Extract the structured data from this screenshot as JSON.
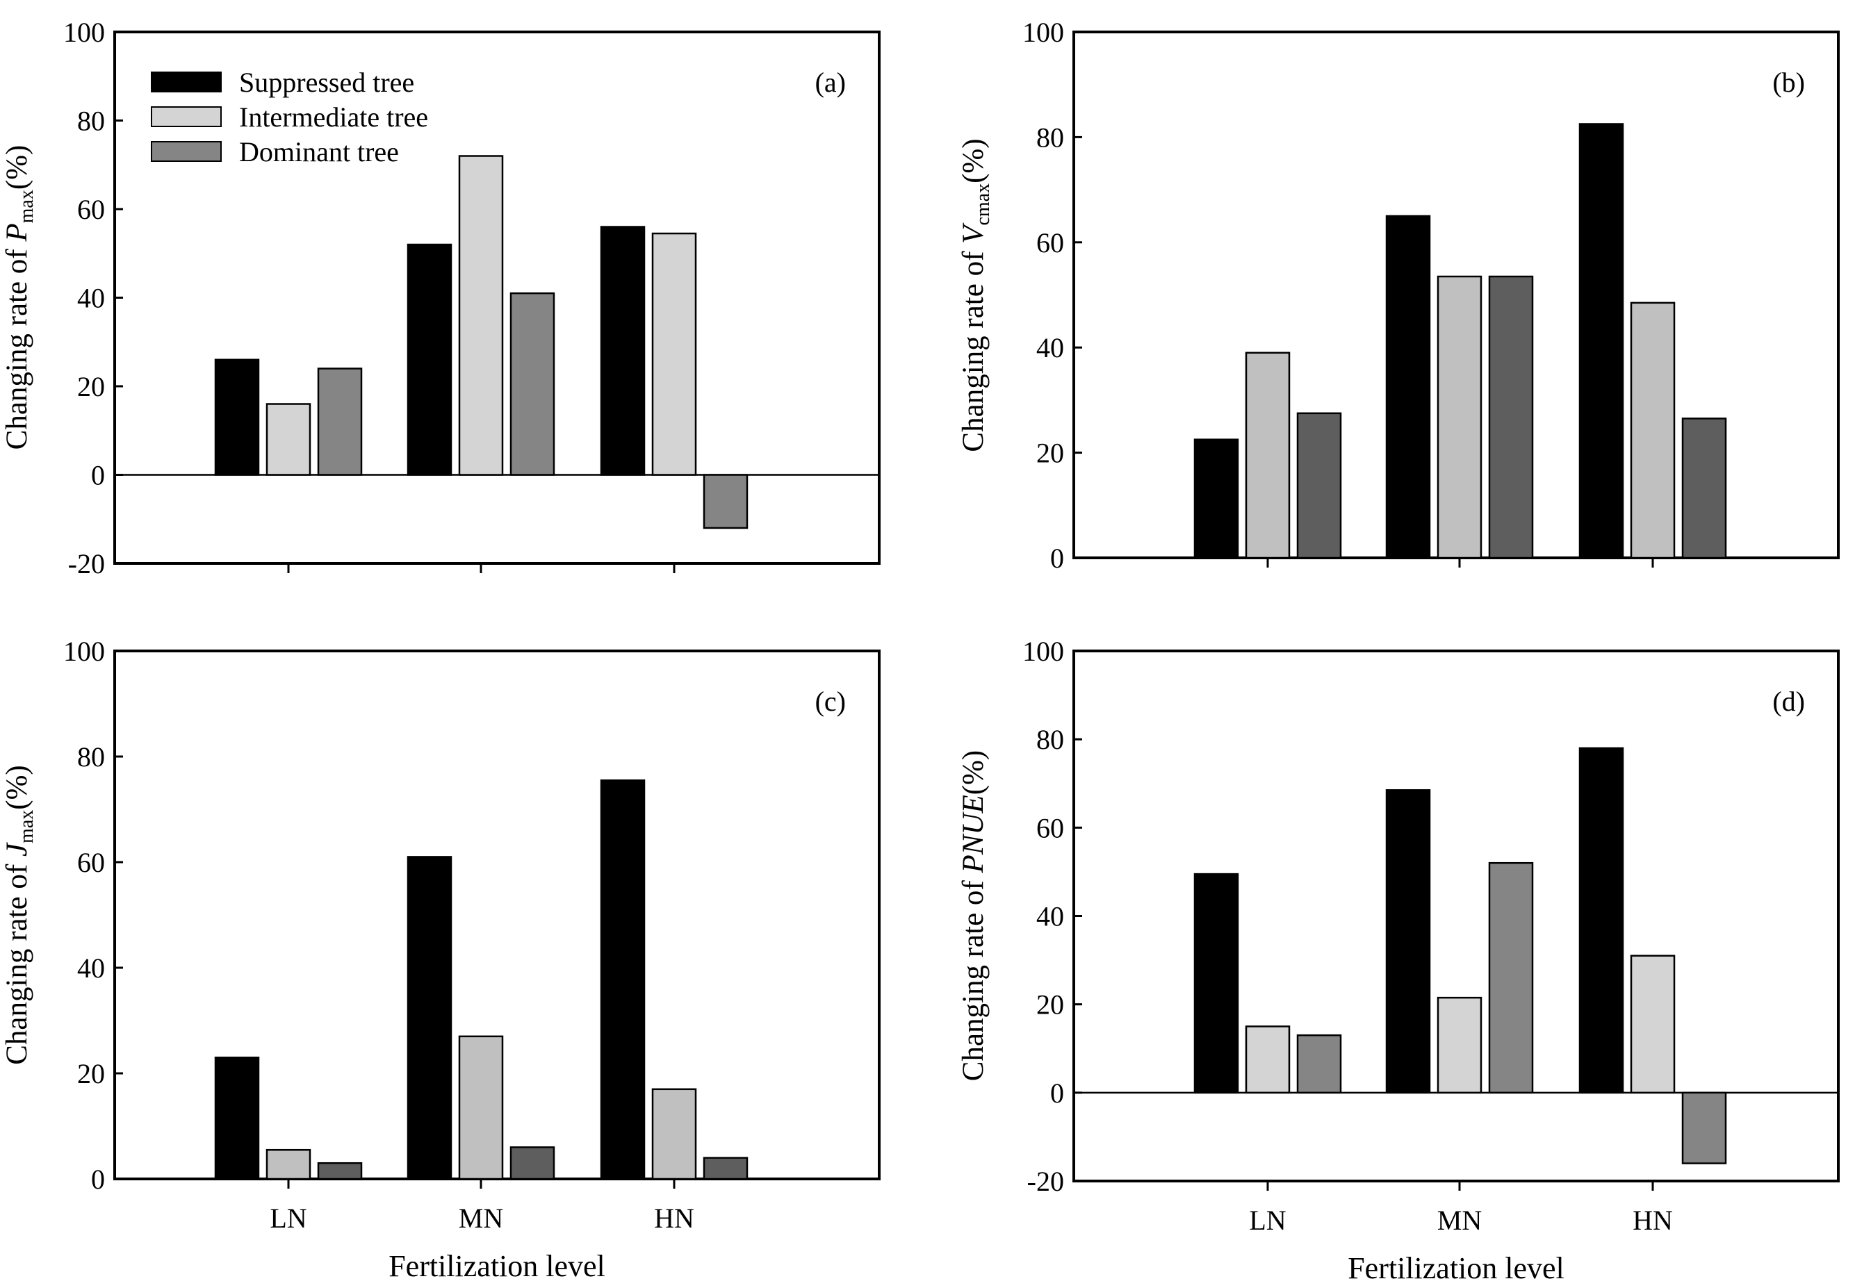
{
  "legend": {
    "entries": [
      {
        "label": "Suppressed tree"
      },
      {
        "label": "Intermediate tree"
      },
      {
        "label": "Dominant tree"
      }
    ]
  },
  "shared_xlabel": "Fertilization level",
  "chart_data": [
    {
      "id": "a",
      "type": "bar",
      "panel_label": "(a)",
      "ylabel_prefix": "Changing rate of ",
      "ylabel_symbol": "P",
      "ylabel_subscript": "max",
      "ylabel_suffix": "(%)",
      "xlabel": "",
      "categories": [
        "LN",
        "MN",
        "HN"
      ],
      "show_category_labels": false,
      "ylim": [
        -20,
        100
      ],
      "yticks": [
        -20,
        0,
        20,
        40,
        60,
        80,
        100
      ],
      "ytick_labels": [
        "-20",
        "0",
        "20",
        "40",
        "60",
        "80",
        "100"
      ],
      "zero_line": true,
      "series": [
        {
          "name": "Suppressed tree",
          "color": "#000000",
          "values": [
            26,
            52,
            56
          ]
        },
        {
          "name": "Intermediate tree",
          "color": "#d4d4d4",
          "values": [
            16,
            72,
            54.5
          ]
        },
        {
          "name": "Dominant tree",
          "color": "#858585",
          "values": [
            24,
            41,
            -12
          ]
        }
      ]
    },
    {
      "id": "b",
      "type": "bar",
      "panel_label": "(b)",
      "ylabel_prefix": "Changing rate of ",
      "ylabel_symbol": "V",
      "ylabel_subscript": "cmax",
      "ylabel_suffix": "(%)",
      "xlabel": "",
      "categories": [
        "LN",
        "MN",
        "HN"
      ],
      "show_category_labels": false,
      "ylim": [
        0,
        100
      ],
      "yticks": [
        0,
        20,
        40,
        60,
        80,
        100
      ],
      "ytick_labels": [
        "0",
        "20",
        "40",
        "60",
        "80",
        "100"
      ],
      "zero_line": false,
      "series": [
        {
          "name": "Suppressed tree",
          "color": "#000000",
          "values": [
            22.5,
            65,
            82.5
          ]
        },
        {
          "name": "Intermediate tree",
          "color": "#c0c0c0",
          "values": [
            39,
            53.5,
            48.5
          ]
        },
        {
          "name": "Dominant tree",
          "color": "#5e5e5e",
          "values": [
            27.5,
            53.5,
            26.5
          ]
        }
      ]
    },
    {
      "id": "c",
      "type": "bar",
      "panel_label": "(c)",
      "ylabel_prefix": "Changing rate of ",
      "ylabel_symbol": "J",
      "ylabel_subscript": "max",
      "ylabel_suffix": "(%)",
      "xlabel": "Fertilization level",
      "categories": [
        "LN",
        "MN",
        "HN"
      ],
      "show_category_labels": true,
      "ylim": [
        0,
        100
      ],
      "yticks": [
        0,
        20,
        40,
        60,
        80,
        100
      ],
      "ytick_labels": [
        "0",
        "20",
        "40",
        "60",
        "80",
        "100"
      ],
      "zero_line": false,
      "series": [
        {
          "name": "Suppressed tree",
          "color": "#000000",
          "values": [
            23,
            61,
            75.5
          ]
        },
        {
          "name": "Intermediate tree",
          "color": "#c0c0c0",
          "values": [
            5.5,
            27,
            17
          ]
        },
        {
          "name": "Dominant tree",
          "color": "#5e5e5e",
          "values": [
            3,
            6,
            4
          ]
        }
      ]
    },
    {
      "id": "d",
      "type": "bar",
      "panel_label": "(d)",
      "ylabel_prefix": "Changing rate of ",
      "ylabel_symbol": "PNUE",
      "ylabel_subscript": "",
      "ylabel_suffix": "(%)",
      "xlabel": "Fertilization level",
      "categories": [
        "LN",
        "MN",
        "HN"
      ],
      "show_category_labels": true,
      "ylim": [
        -20,
        100
      ],
      "yticks": [
        -20,
        0,
        20,
        40,
        60,
        80,
        100
      ],
      "ytick_labels": [
        "-20",
        "0",
        "20",
        "40",
        "60",
        "80",
        "100"
      ],
      "zero_line": true,
      "series": [
        {
          "name": "Suppressed tree",
          "color": "#000000",
          "values": [
            49.5,
            68.5,
            78
          ]
        },
        {
          "name": "Intermediate tree",
          "color": "#d4d4d4",
          "values": [
            15,
            21.5,
            31
          ]
        },
        {
          "name": "Dominant tree",
          "color": "#858585",
          "values": [
            13,
            52,
            -16
          ]
        }
      ]
    }
  ]
}
